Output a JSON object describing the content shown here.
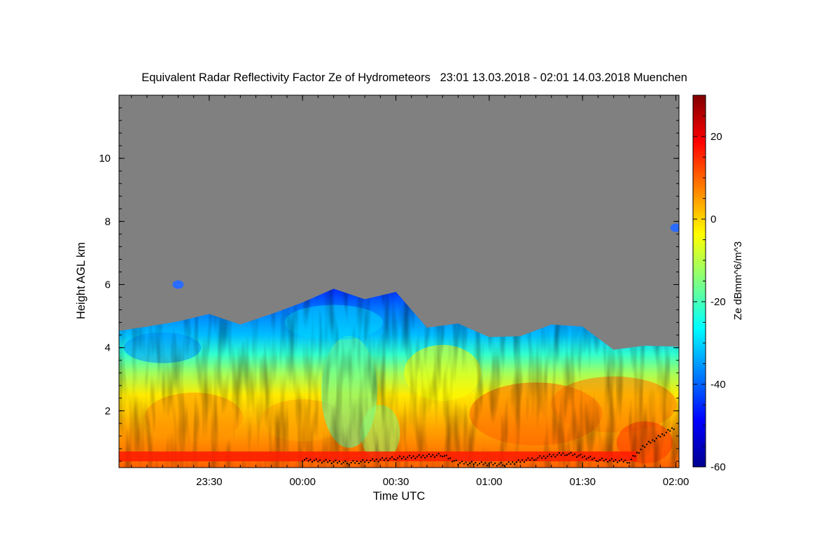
{
  "chart_data": {
    "type": "heatmap",
    "title": "Equivalent Radar Reflectivity Factor Ze of Hydrometeors   23:01 13.03.2018 - 02:01 14.03.2018 Muenchen",
    "xlabel": "Time UTC",
    "ylabel": "Height AGL km",
    "xlim": [
      "23:01",
      "02:01"
    ],
    "ylim": [
      0.2,
      12
    ],
    "x_ticks": [
      "23:30",
      "00:00",
      "00:30",
      "01:00",
      "01:30",
      "02:00"
    ],
    "y_ticks": [
      "2",
      "4",
      "6",
      "8",
      "10"
    ],
    "no_signal_color": "#808080",
    "colorbar": {
      "label": "Ze dBmm^6/m^3",
      "range": [
        -60,
        30
      ],
      "ticks": [
        "20",
        "0",
        "-20",
        "-40",
        "-60"
      ],
      "colormap": "jet"
    },
    "echo_top_km": [
      {
        "t": "23:01",
        "h": 4.6
      },
      {
        "t": "23:10",
        "h": 4.6
      },
      {
        "t": "23:20",
        "h": 4.9
      },
      {
        "t": "23:30",
        "h": 5.0
      },
      {
        "t": "23:40",
        "h": 4.8
      },
      {
        "t": "23:50",
        "h": 5.0
      },
      {
        "t": "00:00",
        "h": 5.5
      },
      {
        "t": "00:10",
        "h": 5.8
      },
      {
        "t": "00:20",
        "h": 5.6
      },
      {
        "t": "00:30",
        "h": 5.7
      },
      {
        "t": "00:40",
        "h": 4.7
      },
      {
        "t": "00:50",
        "h": 4.7
      },
      {
        "t": "01:00",
        "h": 4.4
      },
      {
        "t": "01:10",
        "h": 4.3
      },
      {
        "t": "01:20",
        "h": 4.8
      },
      {
        "t": "01:30",
        "h": 4.6
      },
      {
        "t": "01:40",
        "h": 4.0
      },
      {
        "t": "01:50",
        "h": 4.0
      },
      {
        "t": "02:01",
        "h": 4.1
      }
    ],
    "isolated_echoes": [
      {
        "t": "23:20",
        "h": 6.0
      },
      {
        "t": "02:00",
        "h": 7.8
      }
    ],
    "cloud_base_km": [
      {
        "t": "00:00",
        "h": 0.45
      },
      {
        "t": "00:15",
        "h": 0.35
      },
      {
        "t": "00:30",
        "h": 0.5
      },
      {
        "t": "00:45",
        "h": 0.6
      },
      {
        "t": "00:50",
        "h": 0.35
      },
      {
        "t": "01:05",
        "h": 0.3
      },
      {
        "t": "01:15",
        "h": 0.5
      },
      {
        "t": "01:25",
        "h": 0.65
      },
      {
        "t": "01:35",
        "h": 0.45
      },
      {
        "t": "01:45",
        "h": 0.4
      },
      {
        "t": "01:50",
        "h": 0.9
      },
      {
        "t": "02:00",
        "h": 1.5
      }
    ]
  }
}
